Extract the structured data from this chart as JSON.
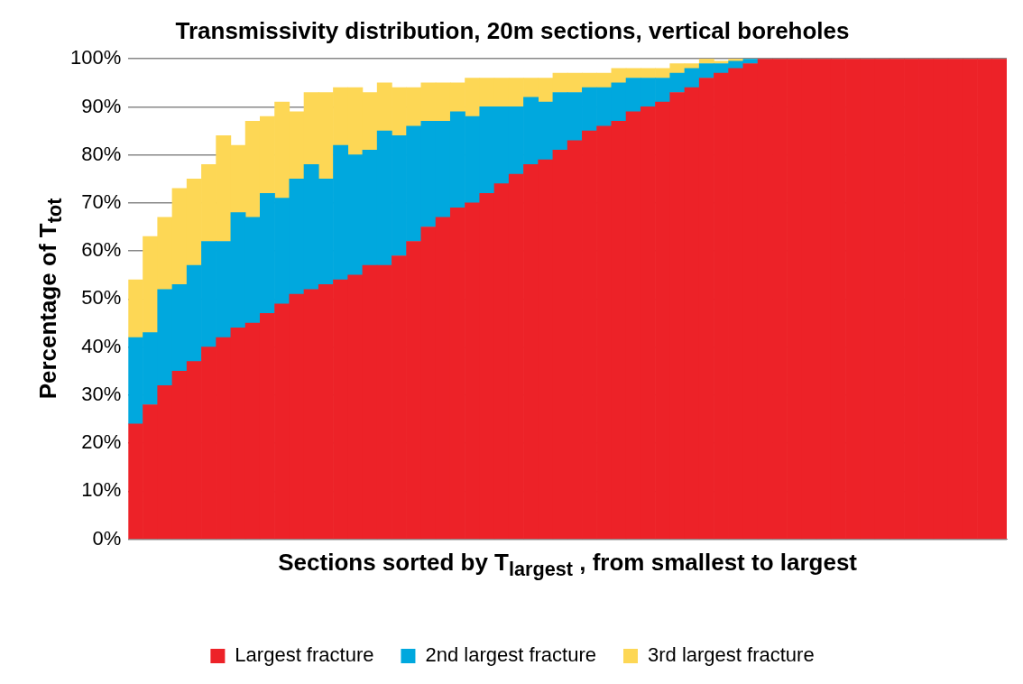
{
  "chart_data": {
    "type": "bar",
    "stacked": true,
    "title": "Transmissivity distribution, 20m sections, vertical boreholes",
    "xlabel": "Sections sorted by T$_{largest}$ , from smallest to largest",
    "ylabel": "Percentage of T$_{tot}$",
    "categories": [
      null,
      null,
      null,
      null,
      null,
      null,
      null,
      null,
      null,
      null,
      null,
      null,
      null,
      null,
      null,
      null,
      null,
      null,
      null,
      null,
      null,
      null,
      null,
      null,
      null,
      null,
      null,
      null,
      null,
      null,
      null,
      null,
      null,
      null,
      null,
      null,
      null,
      null,
      null,
      null,
      null,
      null,
      null,
      null,
      null,
      null,
      null,
      null,
      null,
      null,
      null,
      null,
      null,
      null,
      null,
      null,
      null,
      null,
      null,
      null
    ],
    "series": [
      {
        "name": "Largest fracture",
        "color": "#ed2228",
        "values": [
          24,
          28,
          32,
          35,
          37,
          40,
          42,
          44,
          45,
          47,
          49,
          51,
          52,
          53,
          54,
          55,
          57,
          57,
          59,
          62,
          65,
          67,
          69,
          70,
          72,
          74,
          76,
          78,
          79,
          81,
          83,
          85,
          86,
          87,
          89,
          90,
          91,
          93,
          94,
          96,
          97,
          98,
          99,
          100,
          100,
          100,
          100,
          100,
          100,
          100,
          100,
          100,
          100,
          100,
          100,
          100,
          100,
          100,
          100,
          100
        ]
      },
      {
        "name": "2nd largest fracture",
        "color": "#00a8de",
        "values": [
          18,
          15,
          20,
          18,
          20,
          22,
          20,
          24,
          22,
          25,
          22,
          24,
          26,
          22,
          28,
          25,
          24,
          28,
          25,
          24,
          22,
          20,
          20,
          18,
          18,
          16,
          14,
          14,
          12,
          12,
          10,
          9,
          8,
          8,
          7,
          6,
          5,
          4,
          4,
          3,
          2,
          1.5,
          1,
          0,
          0,
          0,
          0,
          0,
          0,
          0,
          0,
          0,
          0,
          0,
          0,
          0,
          0,
          0,
          0,
          0
        ]
      },
      {
        "name": "3rd largest fracture",
        "color": "#fdd755",
        "values": [
          12,
          20,
          15,
          20,
          18,
          16,
          22,
          14,
          20,
          16,
          20,
          14,
          15,
          18,
          12,
          14,
          12,
          10,
          10,
          8,
          8,
          8,
          6,
          8,
          6,
          6,
          6,
          4,
          5,
          4,
          4,
          3,
          3,
          3,
          2,
          2,
          2,
          2,
          1,
          1,
          0.5,
          0.5,
          0,
          0,
          0,
          0,
          0,
          0,
          0,
          0,
          0,
          0,
          0,
          0,
          0,
          0,
          0,
          0,
          0,
          0
        ]
      }
    ],
    "ylim": [
      0,
      100
    ],
    "yticks": [
      {
        "value": 0,
        "label": "0%"
      },
      {
        "value": 10,
        "label": "10%"
      },
      {
        "value": 20,
        "label": "20%"
      },
      {
        "value": 30,
        "label": "30%"
      },
      {
        "value": 40,
        "label": "40%"
      },
      {
        "value": 50,
        "label": "50%"
      },
      {
        "value": 60,
        "label": "60%"
      },
      {
        "value": 70,
        "label": "70%"
      },
      {
        "value": 80,
        "label": "80%"
      },
      {
        "value": 90,
        "label": "90%"
      },
      {
        "value": 100,
        "label": "100%"
      }
    ],
    "grid": "y",
    "legend": "bottom"
  }
}
